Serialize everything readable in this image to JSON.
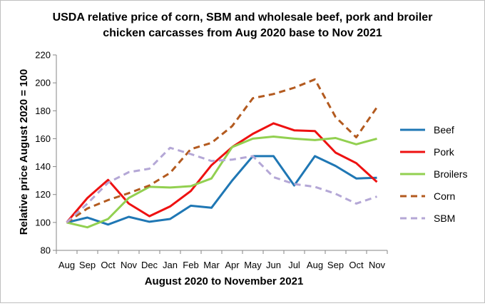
{
  "chart_data": {
    "type": "line",
    "title_lines": [
      "USDA relative price of corn, SBM and wholesale beef, pork and broiler",
      "chicken carcasses from Aug 2020 base  to Nov 2021"
    ],
    "xlabel": "August 2020 to November 2021",
    "ylabel": "Relative price August 2020 = 100",
    "categories": [
      "Aug",
      "Sep",
      "Oct",
      "Nov",
      "Dec",
      "Jan",
      "Feb",
      "Mar",
      "Apr",
      "May",
      "Jun",
      "Jul",
      "Aug",
      "Sep",
      "Oct",
      "Nov"
    ],
    "ylim": [
      80,
      220
    ],
    "yticks": [
      80,
      100,
      120,
      140,
      160,
      180,
      200,
      220
    ],
    "grid": false,
    "legend_position": "right",
    "series": [
      {
        "name": "Beef",
        "color": "#1f77b4",
        "dash": false,
        "values": [
          100,
          103.5,
          98.5,
          104,
          100.5,
          102.5,
          112,
          110.5,
          130,
          147.5,
          147.5,
          126.5,
          147.5,
          140.5,
          131.5,
          132
        ]
      },
      {
        "name": "Pork",
        "color": "#ee1111",
        "dash": false,
        "values": [
          100,
          117.5,
          130.5,
          113.5,
          104.5,
          111.5,
          122.5,
          141,
          154,
          163.5,
          171,
          166,
          165.5,
          150,
          142.5,
          129
        ]
      },
      {
        "name": "Broilers",
        "color": "#92d050",
        "dash": false,
        "values": [
          100,
          96.5,
          102.5,
          117.5,
          125.5,
          125,
          126,
          131.5,
          154,
          160,
          161.5,
          160,
          159,
          160.5,
          156,
          160
        ]
      },
      {
        "name": "Corn",
        "color": "#b35a1f",
        "dash": true,
        "values": [
          100,
          110,
          116,
          121,
          126.5,
          135.5,
          152.5,
          157,
          169,
          189,
          192,
          196.5,
          202.5,
          175.5,
          161,
          182.5
        ]
      },
      {
        "name": "SBM",
        "color": "#b4a7d6",
        "dash": true,
        "values": [
          100,
          113.5,
          128.5,
          136,
          138.5,
          153.5,
          149,
          144,
          145,
          147.5,
          132.5,
          127.5,
          125.5,
          120.5,
          113.5,
          118.5
        ]
      }
    ]
  }
}
